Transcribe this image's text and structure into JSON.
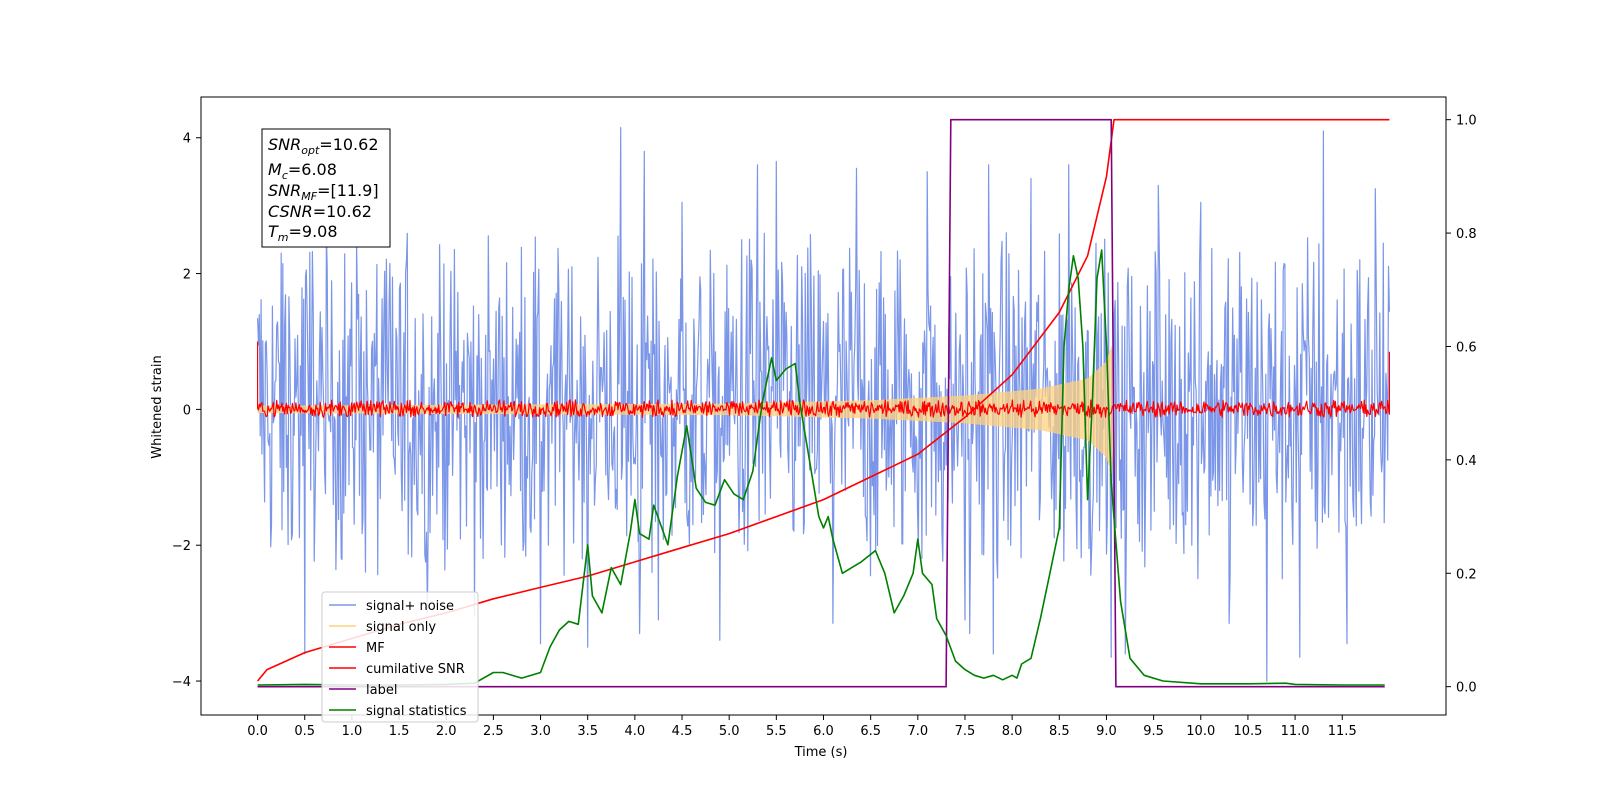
{
  "chart_data": {
    "type": "line",
    "xlabel": "Time (s)",
    "ylabel": "Whitened strain",
    "xlim": [
      -0.6,
      12.6
    ],
    "ylim": [
      -4.5,
      4.6
    ],
    "y2lim": [
      -0.05,
      1.04
    ],
    "x_ticks": [
      "0.0",
      "0.5",
      "1.0",
      "1.5",
      "2.0",
      "2.5",
      "3.0",
      "3.5",
      "4.0",
      "4.5",
      "5.0",
      "5.5",
      "6.0",
      "6.5",
      "7.0",
      "7.5",
      "8.0",
      "8.5",
      "9.0",
      "9.5",
      "10.0",
      "10.5",
      "11.0",
      "11.5"
    ],
    "y_ticks": [
      "−4",
      "−2",
      "0",
      "2",
      "4"
    ],
    "y2_ticks": [
      "0.0",
      "0.2",
      "0.4",
      "0.6",
      "0.8",
      "1.0"
    ],
    "grid": false,
    "legend_placement": "lower-left",
    "info_box": {
      "snr_opt": {
        "base": "SNR",
        "sub": "opt",
        "value": "=10.62"
      },
      "mc": {
        "base": "M",
        "sub": "c",
        "value": "=6.08"
      },
      "snr_mf": {
        "base": "SNR",
        "sub": "MF",
        "value": "=[11.9]"
      },
      "csnr": {
        "base": "CSNR",
        "value": "=10.62"
      },
      "tm": {
        "base": "T",
        "sub": "m",
        "value": "=9.08"
      }
    },
    "series": [
      {
        "name": "signal+ noise",
        "color": "#7b96e8",
        "axis": "left",
        "kind": "noise-band",
        "x_range": [
          0.0,
          12.0
        ],
        "envelope": [
          -2.5,
          2.6
        ],
        "spike_peaks": [
          [
            0.25,
            2.3
          ],
          [
            0.5,
            -3.6
          ],
          [
            1.05,
            2.45
          ],
          [
            1.8,
            -3.0
          ],
          [
            2.3,
            -3.05
          ],
          [
            3.0,
            -3.45
          ],
          [
            3.5,
            -3.5
          ],
          [
            3.85,
            4.15
          ],
          [
            4.05,
            -3.3
          ],
          [
            4.1,
            3.8
          ],
          [
            4.25,
            -3.1
          ],
          [
            4.5,
            3.05
          ],
          [
            4.9,
            -3.4
          ],
          [
            5.3,
            3.6
          ],
          [
            5.5,
            3.65
          ],
          [
            6.1,
            -3.15
          ],
          [
            6.35,
            3.55
          ],
          [
            7.1,
            3.5
          ],
          [
            7.5,
            -3.1
          ],
          [
            7.55,
            -3.3
          ],
          [
            7.75,
            3.6
          ],
          [
            7.8,
            -3.6
          ],
          [
            8.2,
            3.4
          ],
          [
            8.6,
            3.6
          ],
          [
            9.05,
            -3.65
          ],
          [
            9.2,
            -3.6
          ],
          [
            9.55,
            3.3
          ],
          [
            10.0,
            3.05
          ],
          [
            10.3,
            -3.15
          ],
          [
            10.7,
            -4.0
          ],
          [
            11.05,
            -3.65
          ],
          [
            11.3,
            4.1
          ],
          [
            11.55,
            -3.45
          ],
          [
            11.85,
            3.25
          ]
        ],
        "draw_order": 1
      },
      {
        "name": "signal only",
        "color": "#ffd27f",
        "axis": "left",
        "kind": "chirp-envelope",
        "x_range": [
          0.0,
          9.08
        ],
        "amplitude_points": [
          [
            0.0,
            0.05
          ],
          [
            5.0,
            0.08
          ],
          [
            6.5,
            0.13
          ],
          [
            7.5,
            0.2
          ],
          [
            8.3,
            0.3
          ],
          [
            8.8,
            0.45
          ],
          [
            9.0,
            0.7
          ],
          [
            9.06,
            0.95
          ],
          [
            9.08,
            0.0
          ]
        ],
        "draw_order": 2
      },
      {
        "name": "MF",
        "color": "#ff0000",
        "axis": "left",
        "kind": "noise-band",
        "x_range": [
          0.0,
          12.0
        ],
        "envelope": [
          -0.12,
          0.14
        ],
        "edge_values": [
          [
            0.0,
            1.0
          ],
          [
            12.0,
            0.85
          ]
        ],
        "draw_order": 3
      },
      {
        "name": "cumilative SNR",
        "color": "#ff0000",
        "axis": "right",
        "points": [
          [
            0.0,
            0.01
          ],
          [
            0.1,
            0.03
          ],
          [
            0.5,
            0.06
          ],
          [
            1.0,
            0.085
          ],
          [
            1.5,
            0.11
          ],
          [
            2.0,
            0.13
          ],
          [
            2.5,
            0.155
          ],
          [
            3.0,
            0.175
          ],
          [
            3.5,
            0.195
          ],
          [
            4.0,
            0.22
          ],
          [
            4.5,
            0.245
          ],
          [
            5.0,
            0.27
          ],
          [
            5.5,
            0.3
          ],
          [
            6.0,
            0.33
          ],
          [
            6.5,
            0.37
          ],
          [
            7.0,
            0.41
          ],
          [
            7.5,
            0.475
          ],
          [
            8.0,
            0.55
          ],
          [
            8.5,
            0.66
          ],
          [
            8.8,
            0.76
          ],
          [
            9.0,
            0.9
          ],
          [
            9.08,
            1.0
          ],
          [
            12.0,
            1.0
          ]
        ],
        "draw_order": 4
      },
      {
        "name": "label",
        "color": "#800080",
        "axis": "right",
        "points": [
          [
            0.0,
            0.0
          ],
          [
            7.3,
            0.0
          ],
          [
            7.35,
            1.0
          ],
          [
            9.05,
            1.0
          ],
          [
            9.1,
            0.0
          ],
          [
            11.95,
            0.0
          ]
        ],
        "draw_order": 5
      },
      {
        "name": "signal statistics",
        "color": "#008000",
        "axis": "right",
        "points": [
          [
            0.0,
            0.003
          ],
          [
            0.5,
            0.004
          ],
          [
            1.0,
            0.003
          ],
          [
            1.5,
            0.003
          ],
          [
            2.0,
            0.004
          ],
          [
            2.3,
            0.006
          ],
          [
            2.5,
            0.025
          ],
          [
            2.6,
            0.025
          ],
          [
            2.8,
            0.015
          ],
          [
            3.0,
            0.025
          ],
          [
            3.1,
            0.07
          ],
          [
            3.2,
            0.1
          ],
          [
            3.3,
            0.115
          ],
          [
            3.4,
            0.11
          ],
          [
            3.5,
            0.25
          ],
          [
            3.55,
            0.16
          ],
          [
            3.65,
            0.13
          ],
          [
            3.75,
            0.21
          ],
          [
            3.85,
            0.18
          ],
          [
            3.95,
            0.27
          ],
          [
            4.0,
            0.33
          ],
          [
            4.05,
            0.27
          ],
          [
            4.15,
            0.26
          ],
          [
            4.2,
            0.32
          ],
          [
            4.35,
            0.25
          ],
          [
            4.45,
            0.37
          ],
          [
            4.55,
            0.46
          ],
          [
            4.65,
            0.35
          ],
          [
            4.75,
            0.325
          ],
          [
            4.85,
            0.32
          ],
          [
            4.95,
            0.365
          ],
          [
            5.05,
            0.34
          ],
          [
            5.15,
            0.33
          ],
          [
            5.25,
            0.38
          ],
          [
            5.35,
            0.5
          ],
          [
            5.45,
            0.58
          ],
          [
            5.5,
            0.54
          ],
          [
            5.6,
            0.56
          ],
          [
            5.7,
            0.57
          ],
          [
            5.75,
            0.5
          ],
          [
            5.85,
            0.4
          ],
          [
            5.95,
            0.3
          ],
          [
            6.0,
            0.28
          ],
          [
            6.05,
            0.3
          ],
          [
            6.1,
            0.26
          ],
          [
            6.2,
            0.2
          ],
          [
            6.3,
            0.21
          ],
          [
            6.4,
            0.22
          ],
          [
            6.55,
            0.24
          ],
          [
            6.65,
            0.2
          ],
          [
            6.75,
            0.13
          ],
          [
            6.85,
            0.16
          ],
          [
            6.95,
            0.2
          ],
          [
            7.0,
            0.26
          ],
          [
            7.05,
            0.2
          ],
          [
            7.15,
            0.18
          ],
          [
            7.2,
            0.12
          ],
          [
            7.3,
            0.09
          ],
          [
            7.4,
            0.045
          ],
          [
            7.5,
            0.03
          ],
          [
            7.6,
            0.02
          ],
          [
            7.7,
            0.015
          ],
          [
            7.8,
            0.02
          ],
          [
            7.9,
            0.012
          ],
          [
            8.0,
            0.02
          ],
          [
            8.05,
            0.015
          ],
          [
            8.1,
            0.04
          ],
          [
            8.2,
            0.05
          ],
          [
            8.3,
            0.12
          ],
          [
            8.4,
            0.2
          ],
          [
            8.5,
            0.28
          ],
          [
            8.55,
            0.6
          ],
          [
            8.6,
            0.7
          ],
          [
            8.65,
            0.76
          ],
          [
            8.7,
            0.72
          ],
          [
            8.75,
            0.6
          ],
          [
            8.8,
            0.33
          ],
          [
            8.85,
            0.5
          ],
          [
            8.9,
            0.72
          ],
          [
            8.95,
            0.77
          ],
          [
            9.0,
            0.6
          ],
          [
            9.05,
            0.36
          ],
          [
            9.15,
            0.15
          ],
          [
            9.25,
            0.05
          ],
          [
            9.4,
            0.02
          ],
          [
            9.6,
            0.01
          ],
          [
            10.0,
            0.005
          ],
          [
            10.5,
            0.005
          ],
          [
            10.9,
            0.006
          ],
          [
            11.0,
            0.004
          ],
          [
            11.5,
            0.003
          ],
          [
            11.95,
            0.003
          ]
        ],
        "draw_order": 6
      }
    ]
  }
}
